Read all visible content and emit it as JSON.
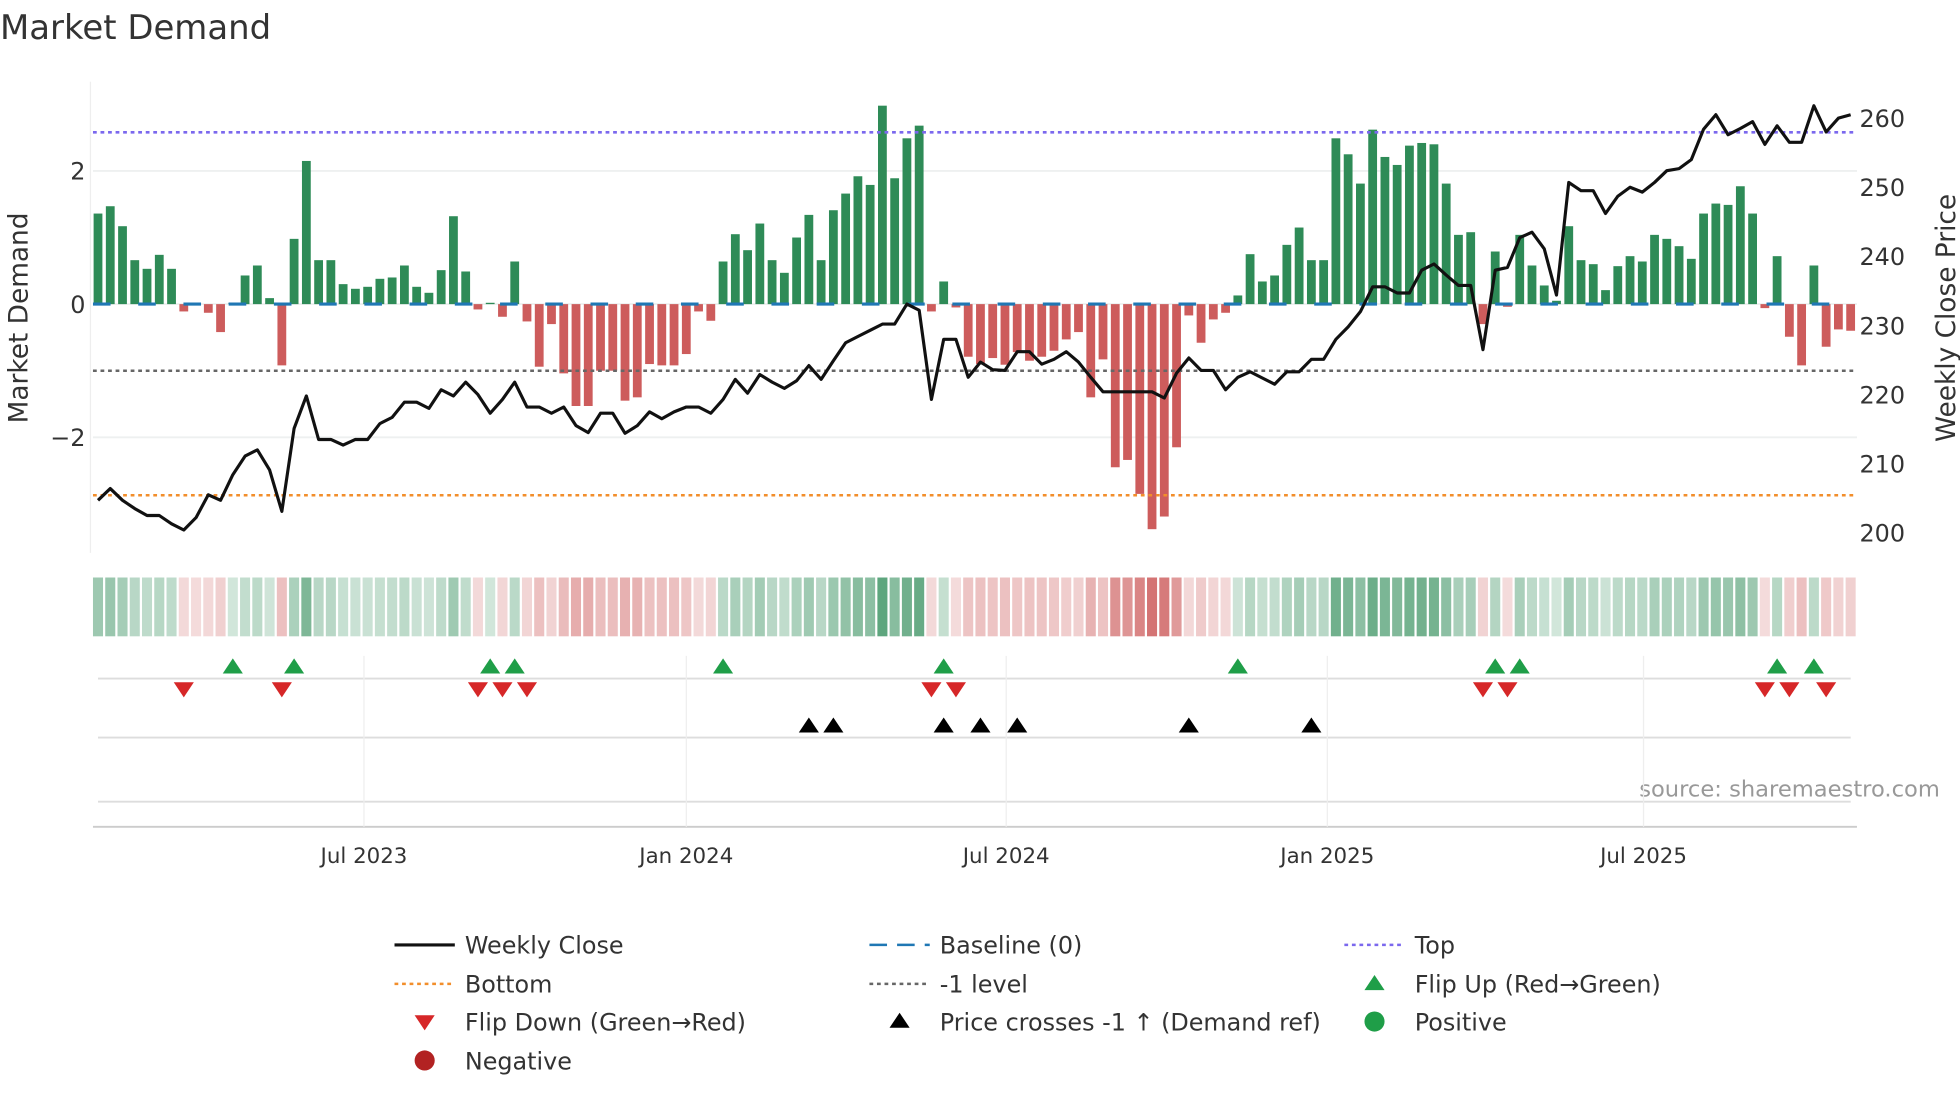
{
  "chart_data": {
    "type": "bar",
    "title": "Market Demand",
    "ylabel": "Market Demand",
    "y2label": "Weekly Close Price",
    "ylim": [
      -3.8,
      3.3
    ],
    "y2lim": [
      197,
      266
    ],
    "yticks": [
      {
        "v": 2,
        "label": "2"
      },
      {
        "v": 0,
        "label": "0"
      },
      {
        "v": -2,
        "label": "−2"
      }
    ],
    "y2ticks": [
      200,
      210,
      220,
      230,
      240,
      250,
      260
    ],
    "xticks": [
      {
        "i": 21.7,
        "label": "Jul 2023"
      },
      {
        "i": 48.0,
        "label": "Jan 2024"
      },
      {
        "i": 74.1,
        "label": "Jul 2024"
      },
      {
        "i": 100.3,
        "label": "Jan 2025"
      },
      {
        "i": 126.1,
        "label": "Jul 2025"
      }
    ],
    "levels": {
      "top": 2.58,
      "bottom": -2.87,
      "minus_one": -1.0,
      "baseline": 0
    },
    "demand": [
      1.36,
      1.47,
      1.17,
      0.66,
      0.53,
      0.74,
      0.53,
      -0.11,
      -0.02,
      -0.13,
      -0.42,
      0.02,
      0.43,
      0.58,
      0.09,
      -0.92,
      0.98,
      2.15,
      0.66,
      0.66,
      0.3,
      0.23,
      0.26,
      0.38,
      0.4,
      0.58,
      0.26,
      0.17,
      0.51,
      1.32,
      0.49,
      -0.08,
      0.02,
      -0.19,
      0.64,
      -0.26,
      -0.94,
      -0.3,
      -1.04,
      -1.53,
      -1.53,
      -1.0,
      -1.0,
      -1.45,
      -1.4,
      -0.9,
      -0.92,
      -0.92,
      -0.75,
      -0.11,
      -0.25,
      0.64,
      1.05,
      0.81,
      1.21,
      0.66,
      0.47,
      1.0,
      1.34,
      0.66,
      1.41,
      1.66,
      1.92,
      1.79,
      2.98,
      1.89,
      2.49,
      2.68,
      -0.11,
      0.34,
      -0.05,
      -0.79,
      -0.9,
      -0.81,
      -0.91,
      -0.72,
      -0.85,
      -0.79,
      -0.7,
      -0.53,
      -0.42,
      -1.4,
      -0.83,
      -2.45,
      -2.34,
      -2.85,
      -3.38,
      -3.19,
      -2.15,
      -0.17,
      -0.58,
      -0.23,
      -0.13,
      0.13,
      0.75,
      0.34,
      0.43,
      0.89,
      1.15,
      0.66,
      0.66,
      2.49,
      2.25,
      1.81,
      2.62,
      2.21,
      2.09,
      2.38,
      2.42,
      2.4,
      1.81,
      1.04,
      1.08,
      -0.3,
      0.79,
      -0.04,
      1.04,
      0.58,
      0.28,
      0.05,
      1.17,
      0.66,
      0.6,
      0.21,
      0.57,
      0.72,
      0.64,
      1.04,
      0.98,
      0.87,
      0.68,
      1.36,
      1.51,
      1.49,
      1.77,
      1.36,
      -0.06,
      0.72,
      -0.49,
      -0.92,
      0.58,
      -0.64,
      -0.38,
      -0.4
    ],
    "close": [
      204.7,
      206.4,
      204.7,
      203.5,
      202.5,
      202.5,
      201.3,
      200.4,
      202.2,
      205.5,
      204.7,
      208.4,
      211.1,
      212.0,
      209.1,
      203.1,
      215.1,
      219.8,
      213.5,
      213.5,
      212.7,
      213.5,
      213.5,
      215.8,
      216.7,
      218.9,
      218.9,
      218.0,
      220.7,
      219.8,
      221.8,
      220.0,
      217.3,
      219.3,
      221.8,
      218.2,
      218.2,
      217.3,
      218.2,
      215.5,
      214.5,
      217.3,
      217.3,
      214.4,
      215.5,
      217.5,
      216.5,
      217.5,
      218.2,
      218.2,
      217.3,
      219.3,
      222.2,
      220.2,
      222.9,
      221.8,
      220.9,
      222.0,
      224.2,
      222.2,
      224.9,
      227.5,
      228.4,
      229.3,
      230.2,
      230.2,
      233.1,
      232.2,
      219.3,
      228.0,
      228.0,
      222.5,
      224.7,
      223.6,
      223.5,
      226.2,
      226.2,
      224.4,
      225.1,
      226.2,
      224.7,
      222.5,
      220.4,
      220.4,
      220.4,
      220.4,
      220.4,
      219.5,
      223.1,
      225.3,
      223.5,
      223.5,
      220.7,
      222.5,
      223.3,
      222.4,
      221.5,
      223.3,
      223.3,
      225.1,
      225.1,
      228.0,
      229.8,
      232.0,
      235.6,
      235.6,
      234.7,
      234.7,
      238.0,
      238.9,
      237.3,
      235.8,
      235.8,
      226.5,
      238.0,
      238.4,
      242.7,
      243.5,
      241.1,
      234.4,
      250.7,
      249.5,
      249.5,
      246.2,
      248.7,
      250.0,
      249.3,
      250.7,
      252.4,
      252.7,
      254.0,
      258.4,
      260.5,
      257.6,
      258.5,
      259.5,
      256.2,
      258.9,
      256.5,
      256.5,
      261.8,
      258.0,
      260.0,
      260.5
    ],
    "flip_up": [
      11,
      16,
      32,
      34,
      51,
      69,
      93,
      114,
      116,
      137,
      140
    ],
    "flip_down": [
      7,
      15,
      31,
      33,
      35,
      68,
      70,
      113,
      115,
      136,
      138,
      141
    ],
    "price_cross": [
      58,
      60,
      69,
      72,
      75,
      89,
      99
    ],
    "legend": [
      {
        "key": "close",
        "label": "Weekly Close"
      },
      {
        "key": "baseline",
        "label": "Baseline (0)"
      },
      {
        "key": "top",
        "label": "Top"
      },
      {
        "key": "bottom",
        "label": "Bottom"
      },
      {
        "key": "minus1",
        "label": "-1 level"
      },
      {
        "key": "flipup",
        "label": "Flip Up (Red→Green)"
      },
      {
        "key": "flipdown",
        "label": "Flip Down (Green→Red)"
      },
      {
        "key": "cross",
        "label": "Price crosses -1 ↑ (Demand ref)"
      },
      {
        "key": "positive",
        "label": "Positive"
      },
      {
        "key": "negative",
        "label": "Negative"
      }
    ],
    "legend_placement": "bottom",
    "source": "source: sharemaestro.com"
  },
  "colors": {
    "pos": "#2e8b57",
    "neg": "#cd5c5c",
    "baseline": "#1f77b4",
    "top": "#7b68ee",
    "bottom": "#f28e2b",
    "minus1": "#666666",
    "flipup": "#1f9e48",
    "flipdown": "#d62728",
    "cross": "#000000",
    "posdot": "#1f9e48",
    "negdot": "#b22222"
  }
}
